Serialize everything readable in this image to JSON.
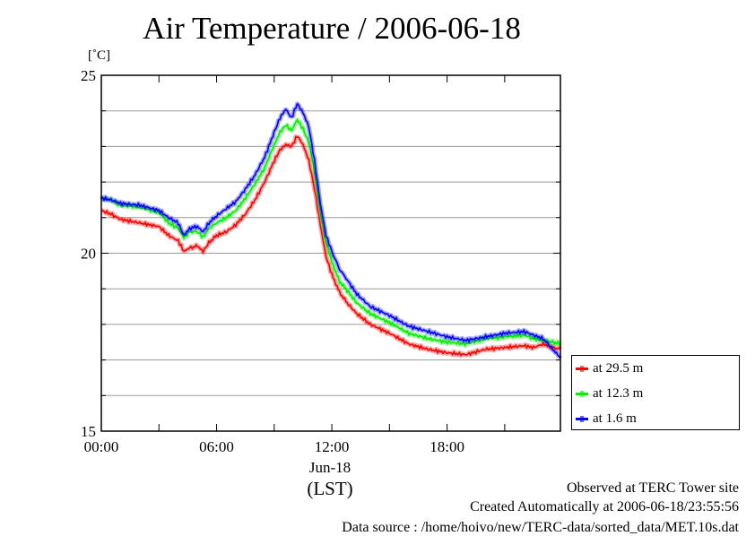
{
  "chart_data": {
    "type": "line",
    "title": "Air Temperature / 2006-06-18",
    "ylabel": "[˚C]",
    "xlabel": "(LST)",
    "date_label": "Jun-18",
    "ylim": [
      15,
      25
    ],
    "xlim_hours": [
      0,
      23.9
    ],
    "y_ticks": [
      "15",
      "20",
      "25"
    ],
    "x_ticks": [
      {
        "hour": 0,
        "label": "00:00"
      },
      {
        "hour": 6,
        "label": "06:00"
      },
      {
        "hour": 12,
        "label": "12:00"
      },
      {
        "hour": 18,
        "label": "18:00"
      }
    ],
    "grid": true,
    "legend_position": "right",
    "x_hours": [
      0,
      0.5,
      1,
      2,
      3,
      3.5,
      4,
      4.3,
      4.6,
      5,
      5.3,
      5.6,
      6,
      6.5,
      7,
      7.5,
      8,
      8.5,
      9,
      9.3,
      9.6,
      9.9,
      10.2,
      10.5,
      10.8,
      11.1,
      11.4,
      11.7,
      12,
      12.4,
      12.8,
      13.3,
      14,
      15,
      16,
      17,
      18,
      19,
      20,
      21,
      22,
      22.5,
      23,
      23.5,
      23.9
    ],
    "series": [
      {
        "name": "at 29.5 m",
        "color": "#ff0000",
        "values": [
          21.2,
          21.1,
          20.95,
          20.85,
          20.75,
          20.5,
          20.35,
          20.05,
          20.15,
          20.2,
          20.05,
          20.3,
          20.5,
          20.6,
          20.8,
          21.1,
          21.5,
          22.0,
          22.6,
          22.9,
          23.05,
          23.0,
          23.3,
          23.05,
          22.6,
          21.8,
          20.8,
          19.9,
          19.4,
          18.9,
          18.6,
          18.3,
          18.0,
          17.75,
          17.45,
          17.3,
          17.2,
          17.15,
          17.3,
          17.35,
          17.4,
          17.35,
          17.45,
          17.35,
          17.3
        ]
      },
      {
        "name": "at 12.3 m",
        "color": "#00ee00",
        "values": [
          21.55,
          21.5,
          21.35,
          21.3,
          21.15,
          20.85,
          20.7,
          20.45,
          20.6,
          20.6,
          20.45,
          20.7,
          20.85,
          21.0,
          21.2,
          21.55,
          21.95,
          22.4,
          23.05,
          23.4,
          23.6,
          23.45,
          23.75,
          23.5,
          23.1,
          22.3,
          21.2,
          20.3,
          19.75,
          19.2,
          18.95,
          18.6,
          18.3,
          18.05,
          17.75,
          17.6,
          17.5,
          17.45,
          17.6,
          17.65,
          17.7,
          17.6,
          17.55,
          17.5,
          17.45
        ]
      },
      {
        "name": "at 1.6 m",
        "color": "#0000ff",
        "values": [
          21.55,
          21.5,
          21.4,
          21.35,
          21.2,
          21.0,
          20.85,
          20.5,
          20.7,
          20.75,
          20.6,
          20.85,
          21.05,
          21.25,
          21.45,
          21.8,
          22.2,
          22.7,
          23.4,
          23.8,
          24.05,
          23.8,
          24.2,
          23.95,
          23.55,
          22.6,
          21.4,
          20.5,
          20.05,
          19.55,
          19.25,
          18.85,
          18.5,
          18.25,
          17.95,
          17.8,
          17.65,
          17.55,
          17.65,
          17.75,
          17.8,
          17.7,
          17.6,
          17.3,
          17.05
        ]
      }
    ]
  },
  "footer": {
    "observed": "Observed at TERC Tower site",
    "created": "Created Automatically at 2006-06-18/23:55:56",
    "source": "Data source : /home/hoivo/new/TERC-data/sorted_data/MET.10s.dat"
  }
}
